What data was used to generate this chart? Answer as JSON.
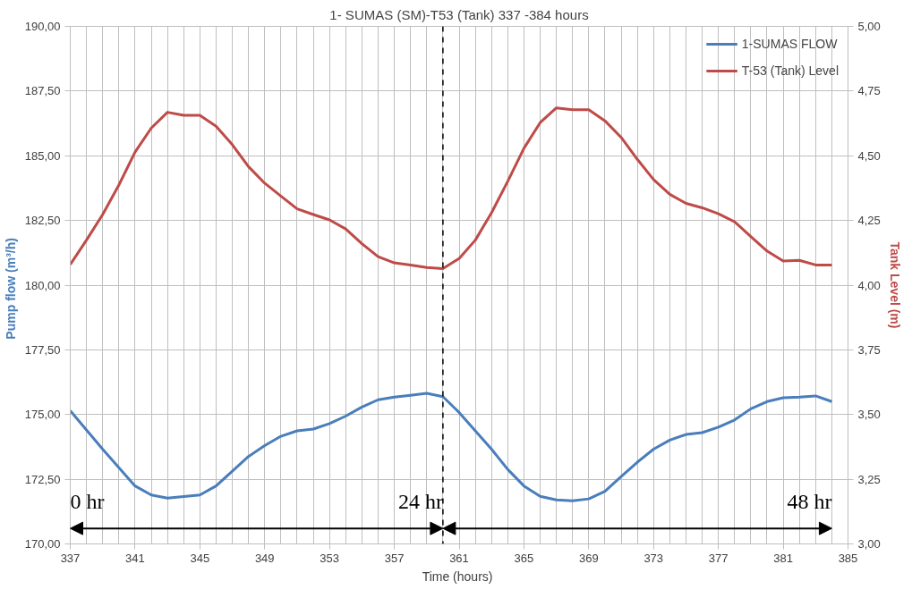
{
  "chart_data": {
    "type": "line",
    "title": "1- SUMAS (SM)-T53 (Tank) 337 -384 hours",
    "xlabel": "Time  (hours)",
    "ylabel": "Pump  flow  (m³/h)",
    "y2label": "Tank Level (m)",
    "x": [
      337,
      339,
      341,
      342,
      343,
      345,
      346,
      347,
      348,
      349,
      350,
      351,
      352,
      353,
      354,
      355,
      356,
      357,
      358,
      359,
      360,
      361,
      362,
      363,
      364,
      365,
      366,
      367,
      368,
      369,
      370,
      371,
      372,
      373,
      374,
      375,
      376,
      377,
      378,
      379,
      380,
      381,
      382,
      383,
      384
    ],
    "series": [
      {
        "name": "1-SUMAS FLOW",
        "color": "#4a7ebb",
        "values": [
          175.15,
          173.66,
          172.24,
          171.89,
          171.77,
          171.89,
          172.24,
          172.81,
          173.38,
          173.8,
          174.16,
          174.37,
          174.44,
          174.65,
          174.94,
          175.29,
          175.57,
          175.67,
          175.74,
          175.82,
          175.69,
          175.08,
          174.37,
          173.66,
          172.88,
          172.24,
          171.84,
          171.7,
          171.67,
          171.74,
          172.03,
          172.6,
          173.16,
          173.66,
          174.01,
          174.23,
          174.3,
          174.51,
          174.79,
          175.22,
          175.5,
          175.65,
          175.67,
          175.72,
          175.5
        ]
      },
      {
        "name": "T-53 (Tank) Level",
        "color": "#be4b48",
        "axis": "y2",
        "x": [
          337,
          338,
          339,
          340,
          341,
          342,
          343,
          344,
          345,
          346,
          347,
          348,
          349,
          350,
          351,
          352,
          353,
          354,
          355,
          356,
          357,
          358,
          359,
          360,
          361,
          362,
          363,
          364,
          365,
          366,
          367,
          368,
          369,
          370,
          371,
          372,
          373,
          374,
          375,
          376,
          377,
          378,
          379,
          380,
          381,
          382,
          383,
          384
        ],
        "values": [
          4.08,
          4.174,
          4.273,
          4.387,
          4.514,
          4.607,
          4.668,
          4.656,
          4.656,
          4.614,
          4.543,
          4.458,
          4.394,
          4.344,
          4.295,
          4.273,
          4.252,
          4.217,
          4.16,
          4.11,
          4.086,
          4.078,
          4.068,
          4.064,
          4.103,
          4.174,
          4.28,
          4.401,
          4.529,
          4.628,
          4.685,
          4.678,
          4.678,
          4.635,
          4.571,
          4.486,
          4.408,
          4.351,
          4.316,
          4.299,
          4.276,
          4.245,
          4.188,
          4.132,
          4.093,
          4.096,
          4.078,
          4.078
        ]
      }
    ],
    "xlim": [
      337,
      385
    ],
    "xticks": [
      337,
      341,
      345,
      349,
      353,
      357,
      361,
      365,
      369,
      373,
      377,
      381,
      385
    ],
    "ylim": [
      170,
      190
    ],
    "yticks": [
      {
        "value": 170,
        "label": "170,00"
      },
      {
        "value": 172.5,
        "label": "172,50"
      },
      {
        "value": 175,
        "label": "175,00"
      },
      {
        "value": 177.5,
        "label": "177,50"
      },
      {
        "value": 180,
        "label": "180,00"
      },
      {
        "value": 182.5,
        "label": "182,50"
      },
      {
        "value": 185,
        "label": "185,00"
      },
      {
        "value": 187.5,
        "label": "187,50"
      },
      {
        "value": 190,
        "label": "190,00"
      }
    ],
    "y2lim": [
      3,
      5
    ],
    "y2ticks": [
      {
        "value": 3,
        "label": "3,00"
      },
      {
        "value": 3.25,
        "label": "3,25"
      },
      {
        "value": 3.5,
        "label": "3,50"
      },
      {
        "value": 3.75,
        "label": "3,75"
      },
      {
        "value": 4,
        "label": "4,00"
      },
      {
        "value": 4.25,
        "label": "4,25"
      },
      {
        "value": 4.5,
        "label": "4,50"
      },
      {
        "value": 4.75,
        "label": "4,75"
      },
      {
        "value": 5,
        "label": "5,00"
      }
    ],
    "ref_lines": [
      {
        "axis": "x",
        "value": 360,
        "color": "#000000",
        "line_style": "dashed"
      }
    ],
    "annotations": [
      "0 hr",
      "24 hr",
      "48 hr"
    ],
    "grid": true,
    "legend": "top right",
    "marker": "none",
    "line_style": "solid"
  }
}
